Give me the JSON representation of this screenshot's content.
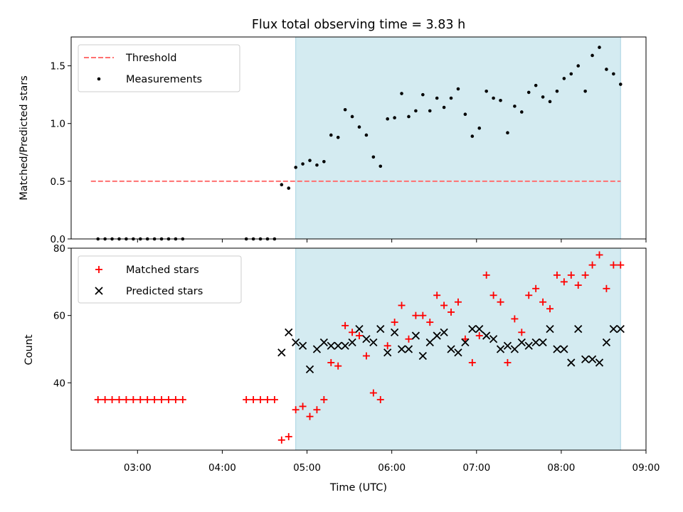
{
  "title": "Flux total observing time = 3.83 h",
  "colors": {
    "measurement": "#000000",
    "threshold": "#ff7070",
    "matched": "#ff0000",
    "predicted": "#000000",
    "highlight": "#d4ebf1",
    "highlight_edge": "#a9d3e2"
  },
  "chart_data": [
    {
      "type": "scatter",
      "ylabel": "Matched/Predicted stars",
      "ylim": [
        0,
        1.75
      ],
      "y_ticks": [
        0.0,
        0.5,
        1.0,
        1.5
      ],
      "y_tick_labels": [
        "0.0",
        "0.5",
        "1.0",
        "1.5"
      ],
      "xlim": [
        "02:13",
        "09:00"
      ],
      "highlight_span": [
        "04:52",
        "08:42"
      ],
      "legend": {
        "placement": "upper left",
        "entries": [
          "Threshold",
          "Measurements"
        ]
      },
      "threshold": {
        "name": "Threshold",
        "value": 0.5,
        "x_range": [
          "02:27",
          "08:42"
        ]
      },
      "series": [
        {
          "name": "Measurements",
          "x": [
            "02:32",
            "02:37",
            "02:42",
            "02:47",
            "02:52",
            "02:57",
            "03:02",
            "03:07",
            "03:12",
            "03:17",
            "03:22",
            "03:27",
            "03:32",
            "04:17",
            "04:22",
            "04:27",
            "04:32",
            "04:37",
            "04:42",
            "04:47",
            "04:52",
            "04:57",
            "05:02",
            "05:07",
            "05:12",
            "05:17",
            "05:22",
            "05:27",
            "05:32",
            "05:37",
            "05:42",
            "05:47",
            "05:52",
            "05:57",
            "06:02",
            "06:07",
            "06:12",
            "06:17",
            "06:22",
            "06:27",
            "06:32",
            "06:37",
            "06:42",
            "06:47",
            "06:52",
            "06:57",
            "07:02",
            "07:07",
            "07:12",
            "07:17",
            "07:22",
            "07:27",
            "07:32",
            "07:37",
            "07:42",
            "07:47",
            "07:52",
            "07:57",
            "08:02",
            "08:07",
            "08:12",
            "08:17",
            "08:22",
            "08:27",
            "08:32",
            "08:37",
            "08:42"
          ],
          "y": [
            0,
            0,
            0,
            0,
            0,
            0,
            0,
            0,
            0,
            0,
            0,
            0,
            0,
            0,
            0,
            0,
            0,
            0,
            0.47,
            0.44,
            0.62,
            0.65,
            0.68,
            0.64,
            0.67,
            0.9,
            0.88,
            1.12,
            1.06,
            0.97,
            0.9,
            0.71,
            0.63,
            1.04,
            1.05,
            1.26,
            1.06,
            1.11,
            1.25,
            1.11,
            1.22,
            1.14,
            1.22,
            1.3,
            1.08,
            0.89,
            0.96,
            1.28,
            1.22,
            1.2,
            0.92,
            1.15,
            1.1,
            1.27,
            1.33,
            1.23,
            1.19,
            1.28,
            1.39,
            1.43,
            1.5,
            1.28,
            1.59,
            1.66,
            1.47,
            1.43,
            1.34
          ]
        }
      ]
    },
    {
      "type": "scatter",
      "ylabel": "Count",
      "xlabel": "Time (UTC)",
      "ylim": [
        20,
        80
      ],
      "y_ticks": [
        40,
        60,
        80
      ],
      "y_tick_labels": [
        "40",
        "60",
        "80"
      ],
      "xlim": [
        "02:13",
        "09:00"
      ],
      "x_ticks": [
        "03:00",
        "04:00",
        "05:00",
        "06:00",
        "07:00",
        "08:00",
        "09:00"
      ],
      "x_tick_labels": [
        "03:00",
        "04:00",
        "05:00",
        "06:00",
        "07:00",
        "08:00",
        "09:00"
      ],
      "highlight_span": [
        "04:52",
        "08:42"
      ],
      "legend": {
        "placement": "upper left",
        "entries": [
          "Matched stars",
          "Predicted stars"
        ]
      },
      "series": [
        {
          "name": "Matched stars",
          "marker": "plus",
          "x": [
            "02:32",
            "02:37",
            "02:42",
            "02:47",
            "02:52",
            "02:57",
            "03:02",
            "03:07",
            "03:12",
            "03:17",
            "03:22",
            "03:27",
            "03:32",
            "04:17",
            "04:22",
            "04:27",
            "04:32",
            "04:37",
            "04:42",
            "04:47",
            "04:52",
            "04:57",
            "05:02",
            "05:07",
            "05:12",
            "05:17",
            "05:22",
            "05:27",
            "05:32",
            "05:37",
            "05:42",
            "05:47",
            "05:52",
            "05:57",
            "06:02",
            "06:07",
            "06:12",
            "06:17",
            "06:22",
            "06:27",
            "06:32",
            "06:37",
            "06:42",
            "06:47",
            "06:52",
            "06:57",
            "07:02",
            "07:07",
            "07:12",
            "07:17",
            "07:22",
            "07:27",
            "07:32",
            "07:37",
            "07:42",
            "07:47",
            "07:52",
            "07:57",
            "08:02",
            "08:07",
            "08:12",
            "08:17",
            "08:22",
            "08:27",
            "08:32",
            "08:37",
            "08:42"
          ],
          "y": [
            35,
            35,
            35,
            35,
            35,
            35,
            35,
            35,
            35,
            35,
            35,
            35,
            35,
            35,
            35,
            35,
            35,
            35,
            23,
            24,
            32,
            33,
            30,
            32,
            35,
            46,
            45,
            57,
            55,
            54,
            48,
            37,
            35,
            51,
            58,
            63,
            53,
            60,
            60,
            58,
            66,
            63,
            61,
            64,
            53,
            46,
            54,
            72,
            66,
            64,
            46,
            59,
            55,
            66,
            68,
            64,
            62,
            72,
            70,
            72,
            69,
            72,
            75,
            78,
            68,
            75,
            75
          ]
        },
        {
          "name": "Predicted stars",
          "marker": "x",
          "x": [
            "04:42",
            "04:47",
            "04:52",
            "04:57",
            "05:02",
            "05:07",
            "05:12",
            "05:17",
            "05:22",
            "05:27",
            "05:32",
            "05:37",
            "05:42",
            "05:47",
            "05:52",
            "05:57",
            "06:02",
            "06:07",
            "06:12",
            "06:17",
            "06:22",
            "06:27",
            "06:32",
            "06:37",
            "06:42",
            "06:47",
            "06:52",
            "06:57",
            "07:02",
            "07:07",
            "07:12",
            "07:17",
            "07:22",
            "07:27",
            "07:32",
            "07:37",
            "07:42",
            "07:47",
            "07:52",
            "07:57",
            "08:02",
            "08:07",
            "08:12",
            "08:17",
            "08:22",
            "08:27",
            "08:32",
            "08:37",
            "08:42"
          ],
          "y": [
            49,
            55,
            52,
            51,
            44,
            50,
            52,
            51,
            51,
            51,
            52,
            56,
            53,
            52,
            56,
            49,
            55,
            50,
            50,
            54,
            48,
            52,
            54,
            55,
            50,
            49,
            52,
            56,
            56,
            54,
            53,
            50,
            51,
            50,
            52,
            51,
            52,
            52,
            56,
            50,
            50,
            46,
            56,
            47,
            47,
            46,
            52,
            56,
            56
          ]
        }
      ]
    }
  ]
}
